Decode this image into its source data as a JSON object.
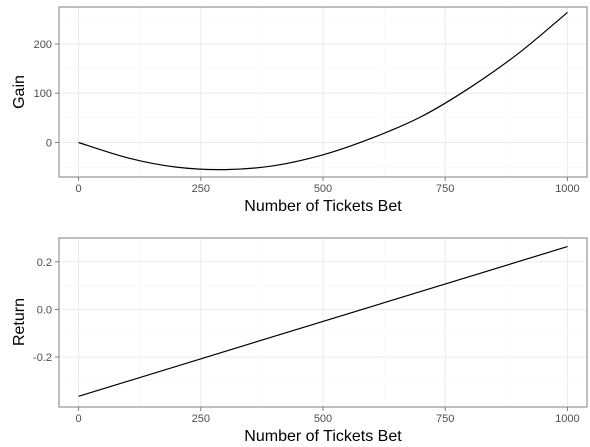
{
  "chart_data": [
    {
      "type": "line",
      "title": "",
      "xlabel": "Number of Tickets Bet",
      "ylabel": "Gain",
      "xlim": [
        -40,
        1040
      ],
      "ylim": [
        -70,
        275
      ],
      "x_ticks": [
        0,
        250,
        500,
        750,
        1000
      ],
      "x_tick_labels": [
        "0",
        "250",
        "500",
        "750",
        "1000"
      ],
      "y_ticks": [
        0,
        100,
        200
      ],
      "y_tick_labels": [
        "0",
        "100",
        "200"
      ],
      "grid": true,
      "series": [
        {
          "x": [
            0,
            100,
            200,
            300,
            400,
            500,
            600,
            700,
            800,
            900,
            1000
          ],
          "values": [
            0,
            -31,
            -50,
            -55,
            -47,
            -25,
            9,
            52,
            111,
            181,
            264
          ]
        }
      ]
    },
    {
      "type": "line",
      "title": "",
      "xlabel": "Number of Tickets Bet",
      "ylabel": "Return",
      "xlim": [
        -40,
        1040
      ],
      "ylim": [
        -0.41,
        0.3
      ],
      "x_ticks": [
        0,
        250,
        500,
        750,
        1000
      ],
      "x_tick_labels": [
        "0",
        "250",
        "500",
        "750",
        "1000"
      ],
      "y_ticks": [
        -0.2,
        0.0,
        0.2
      ],
      "y_tick_labels": [
        "-0.2",
        "0.0",
        "0.2"
      ],
      "grid": true,
      "series": [
        {
          "x": [
            0,
            1000
          ],
          "values": [
            -0.365,
            0.264
          ]
        }
      ]
    }
  ]
}
